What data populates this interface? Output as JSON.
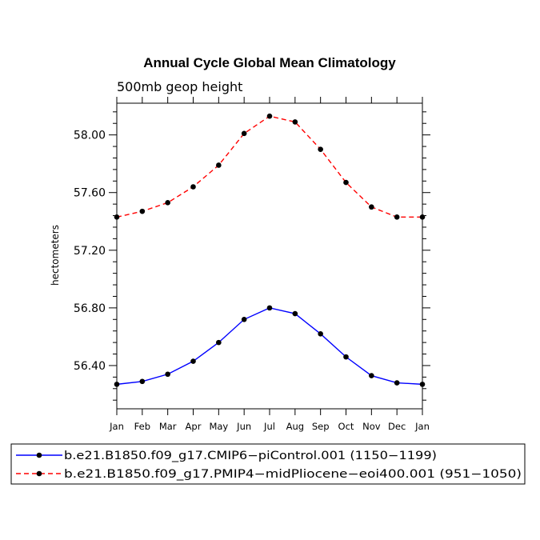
{
  "chart_data": {
    "type": "line",
    "title": "Annual Cycle Global Mean Climatology",
    "subtitle": "500mb  geop  height",
    "xlabel": "",
    "ylabel": "hectometers",
    "categories": [
      "Jan",
      "Feb",
      "Mar",
      "Apr",
      "May",
      "Jun",
      "Jul",
      "Aug",
      "Sep",
      "Oct",
      "Nov",
      "Dec",
      "Jan"
    ],
    "ylim": [
      56.1,
      58.22
    ],
    "yticks": [
      56.4,
      56.8,
      57.2,
      57.6,
      58.0
    ],
    "ytick_labels": [
      "56.40",
      "56.80",
      "57.20",
      "57.60",
      "58.00"
    ],
    "ytick_minor_step": 0.08,
    "series": [
      {
        "name": "b.e21.B1850.f09_g17.CMIP6−piControl.001 (1150−1199)",
        "color": "#0000ff",
        "dash": "solid",
        "values": [
          56.27,
          56.29,
          56.34,
          56.43,
          56.56,
          56.72,
          56.8,
          56.76,
          56.62,
          56.46,
          56.33,
          56.28,
          56.27
        ]
      },
      {
        "name": "b.e21.B1850.f09_g17.PMIP4−midPliocene−eoi400.001 (951−1050)",
        "color": "#ff0000",
        "dash": "dashed",
        "values": [
          57.43,
          57.47,
          57.53,
          57.64,
          57.79,
          58.01,
          58.13,
          58.09,
          57.9,
          57.67,
          57.5,
          57.43,
          57.43
        ]
      }
    ]
  }
}
